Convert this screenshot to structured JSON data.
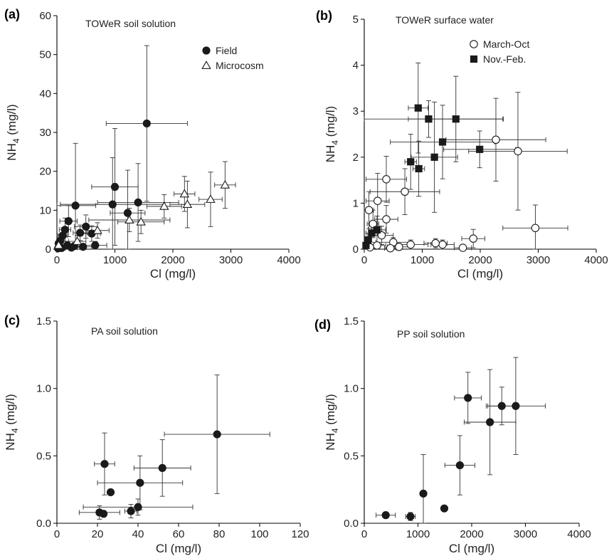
{
  "chart_data": [
    {
      "type": "scatter",
      "panel_label": "(a)",
      "title": "TOWeR soil solution",
      "xlabel": "Cl (mg/l)",
      "ylabel": "NH4 (mg/l)",
      "xlim": [
        0,
        4000
      ],
      "ylim": [
        0,
        60
      ],
      "xticks": [
        "0",
        "1000",
        "2000",
        "3000",
        "4000"
      ],
      "yticks": [
        "0",
        "10",
        "20",
        "30",
        "40",
        "50",
        "60"
      ],
      "legend": "top-right",
      "series": [
        {
          "name": "Field",
          "marker": "filled-circle",
          "points": [
            {
              "x": 1550,
              "y": 32.3,
              "xerr": 700,
              "yerr": 20
            },
            {
              "x": 1000,
              "y": 16.0,
              "xerr": 400,
              "yerr": 15
            },
            {
              "x": 960,
              "y": 11.5,
              "xerr": 900,
              "yerr": 12
            },
            {
              "x": 1400,
              "y": 12.0,
              "xerr": 700,
              "yerr": 10
            },
            {
              "x": 1220,
              "y": 9.3,
              "xerr": 300,
              "yerr": 11
            },
            {
              "x": 320,
              "y": 11.2,
              "xerr": 350,
              "yerr": 16
            },
            {
              "x": 200,
              "y": 7.2,
              "xerr": 150,
              "yerr": 4
            },
            {
              "x": 500,
              "y": 5.8,
              "xerr": 200,
              "yerr": 3
            },
            {
              "x": 140,
              "y": 5.0,
              "xerr": 100,
              "yerr": 3
            },
            {
              "x": 600,
              "y": 4.0,
              "xerr": 150,
              "yerr": 2
            },
            {
              "x": 400,
              "y": 4.2,
              "xerr": 120,
              "yerr": 2
            },
            {
              "x": 100,
              "y": 3.5,
              "xerr": 80,
              "yerr": 2
            },
            {
              "x": 60,
              "y": 2.2,
              "xerr": 50,
              "yerr": 1.5
            },
            {
              "x": 30,
              "y": 1.5,
              "xerr": 30,
              "yerr": 1
            },
            {
              "x": 180,
              "y": 1.0,
              "xerr": 100,
              "yerr": 1
            },
            {
              "x": 660,
              "y": 1.0,
              "xerr": 200,
              "yerr": 1
            },
            {
              "x": 300,
              "y": 0.8,
              "xerr": 150,
              "yerr": 0.8
            },
            {
              "x": 450,
              "y": 0.6,
              "xerr": 150,
              "yerr": 0.6
            },
            {
              "x": 250,
              "y": 0.4,
              "xerr": 100,
              "yerr": 0.4
            },
            {
              "x": 80,
              "y": 0.3,
              "xerr": 60,
              "yerr": 0.3
            },
            {
              "x": 20,
              "y": 0.2,
              "xerr": 20,
              "yerr": 0.2
            }
          ]
        },
        {
          "name": "Microcosm",
          "marker": "open-triangle",
          "points": [
            {
              "x": 2900,
              "y": 16.5,
              "xerr": 180,
              "yerr": 6
            },
            {
              "x": 2200,
              "y": 14.2,
              "xerr": 180,
              "yerr": 4.5
            },
            {
              "x": 2650,
              "y": 12.8,
              "xerr": 200,
              "yerr": 7
            },
            {
              "x": 1850,
              "y": 11.0,
              "xerr": 300,
              "yerr": 3
            },
            {
              "x": 2250,
              "y": 11.5,
              "xerr": 300,
              "yerr": 6
            },
            {
              "x": 1250,
              "y": 7.5,
              "xerr": 700,
              "yerr": 3
            },
            {
              "x": 1450,
              "y": 7.0,
              "xerr": 400,
              "yerr": 3
            },
            {
              "x": 700,
              "y": 4.8,
              "xerr": 200,
              "yerr": 2
            },
            {
              "x": 350,
              "y": 2.0,
              "xerr": 150,
              "yerr": 1.5
            },
            {
              "x": 30,
              "y": 1.0,
              "xerr": 30,
              "yerr": 0.8
            }
          ]
        }
      ]
    },
    {
      "type": "scatter",
      "panel_label": "(b)",
      "title": "TOWeR surface water",
      "xlabel": "Cl (mg/l)",
      "ylabel": "NH4 (mg/l)",
      "xlim": [
        0,
        4000
      ],
      "ylim": [
        0,
        5
      ],
      "xticks": [
        "0",
        "1000",
        "2000",
        "3000",
        "4000"
      ],
      "yticks": [
        "0",
        "1",
        "2",
        "3",
        "4",
        "5"
      ],
      "legend": "top-right",
      "series": [
        {
          "name": "March-Oct",
          "marker": "open-circle",
          "points": [
            {
              "x": 2270,
              "y": 2.38,
              "xerr": 860,
              "yerr": 0.9
            },
            {
              "x": 2650,
              "y": 2.13,
              "xerr": 850,
              "yerr": 1.28
            },
            {
              "x": 2950,
              "y": 0.46,
              "xerr": 560,
              "yerr": 0.5
            },
            {
              "x": 1880,
              "y": 0.23,
              "xerr": 200,
              "yerr": 0.2
            },
            {
              "x": 380,
              "y": 1.52,
              "xerr": 350,
              "yerr": 0.5
            },
            {
              "x": 700,
              "y": 1.25,
              "xerr": 600,
              "yerr": 0.5
            },
            {
              "x": 230,
              "y": 1.05,
              "xerr": 200,
              "yerr": 0.6
            },
            {
              "x": 80,
              "y": 0.85,
              "xerr": 80,
              "yerr": 0.4
            },
            {
              "x": 380,
              "y": 0.65,
              "xerr": 200,
              "yerr": 0.3
            },
            {
              "x": 150,
              "y": 0.55,
              "xerr": 100,
              "yerr": 0.3
            },
            {
              "x": 300,
              "y": 0.3,
              "xerr": 200,
              "yerr": 0.2
            },
            {
              "x": 500,
              "y": 0.15,
              "xerr": 300,
              "yerr": 0.1
            },
            {
              "x": 800,
              "y": 0.1,
              "xerr": 300,
              "yerr": 0.1
            },
            {
              "x": 1350,
              "y": 0.1,
              "xerr": 200,
              "yerr": 0.1
            },
            {
              "x": 1230,
              "y": 0.13,
              "xerr": 200,
              "yerr": 0.1
            },
            {
              "x": 1700,
              "y": 0.03,
              "xerr": 150,
              "yerr": 0.05
            },
            {
              "x": 600,
              "y": 0.05,
              "xerr": 200,
              "yerr": 0.05
            },
            {
              "x": 220,
              "y": 0.08,
              "xerr": 150,
              "yerr": 0.05
            },
            {
              "x": 100,
              "y": 0.04,
              "xerr": 100,
              "yerr": 0.04
            },
            {
              "x": 450,
              "y": 0.02,
              "xerr": 100,
              "yerr": 0.02
            }
          ]
        },
        {
          "name": "Nov.-Feb.",
          "marker": "filled-square",
          "points": [
            {
              "x": 930,
              "y": 3.07,
              "xerr": 170,
              "yerr": 0.98
            },
            {
              "x": 1110,
              "y": 2.83,
              "xerr": 1280,
              "yerr": 0.4
            },
            {
              "x": 1580,
              "y": 2.83,
              "xerr": 820,
              "yerr": 0.93
            },
            {
              "x": 1350,
              "y": 2.33,
              "xerr": 900,
              "yerr": 0.8
            },
            {
              "x": 1990,
              "y": 2.17,
              "xerr": 620,
              "yerr": 0.4
            },
            {
              "x": 1210,
              "y": 2.0,
              "xerr": 400,
              "yerr": 1.2
            },
            {
              "x": 800,
              "y": 1.9,
              "xerr": 100,
              "yerr": 0.6
            },
            {
              "x": 940,
              "y": 1.75,
              "xerr": 100,
              "yerr": 0.6
            },
            {
              "x": 220,
              "y": 0.42,
              "xerr": 150,
              "yerr": 0.3
            },
            {
              "x": 130,
              "y": 0.35,
              "xerr": 100,
              "yerr": 0.2
            },
            {
              "x": 60,
              "y": 0.2,
              "xerr": 60,
              "yerr": 0.15
            },
            {
              "x": 30,
              "y": 0.08,
              "xerr": 30,
              "yerr": 0.05
            }
          ]
        }
      ]
    },
    {
      "type": "scatter",
      "panel_label": "(c)",
      "title": "PA soil solution",
      "xlabel": "Cl (mg/l)",
      "ylabel": "NH4 (mg/l)",
      "xlim": [
        0,
        120
      ],
      "ylim": [
        0,
        1.5
      ],
      "xticks": [
        "0",
        "20",
        "40",
        "60",
        "80",
        "100",
        "120"
      ],
      "yticks": [
        "0.0",
        "0.5",
        "1.0",
        "1.5"
      ],
      "series": [
        {
          "name": "",
          "marker": "filled-circle",
          "points": [
            {
              "x": 79,
              "y": 0.66,
              "xerr": 26,
              "yerr": 0.44
            },
            {
              "x": 23.5,
              "y": 0.44,
              "xerr": 5,
              "yerr": 0.23
            },
            {
              "x": 52,
              "y": 0.41,
              "xerr": 14,
              "yerr": 0.21
            },
            {
              "x": 41,
              "y": 0.3,
              "xerr": 21,
              "yerr": 0.2
            },
            {
              "x": 26.5,
              "y": 0.23,
              "xerr": 0,
              "yerr": 0
            },
            {
              "x": 40,
              "y": 0.12,
              "xerr": 27,
              "yerr": 0.06
            },
            {
              "x": 36.5,
              "y": 0.09,
              "xerr": 3,
              "yerr": 0.05
            },
            {
              "x": 21,
              "y": 0.08,
              "xerr": 10,
              "yerr": 0.05
            },
            {
              "x": 23,
              "y": 0.07,
              "xerr": 0,
              "yerr": 0
            }
          ]
        }
      ]
    },
    {
      "type": "scatter",
      "panel_label": "(d)",
      "title": "PP soil solution",
      "xlabel": "Cl (mg/l)",
      "ylabel": "NH4 (mg/l)",
      "xlim": [
        0,
        4000
      ],
      "ylim": [
        0,
        1.5
      ],
      "xticks": [
        "0",
        "1000",
        "2000",
        "3000",
        "4000"
      ],
      "yticks": [
        "0.0",
        "0.5",
        "1.0",
        "1.5"
      ],
      "series": [
        {
          "name": "",
          "marker": "filled-circle",
          "points": [
            {
              "x": 1930,
              "y": 0.93,
              "xerr": 250,
              "yerr": 0.19
            },
            {
              "x": 2560,
              "y": 0.87,
              "xerr": 260,
              "yerr": 0.14
            },
            {
              "x": 2820,
              "y": 0.87,
              "xerr": 550,
              "yerr": 0.36
            },
            {
              "x": 2340,
              "y": 0.75,
              "xerr": 480,
              "yerr": 0.39
            },
            {
              "x": 1780,
              "y": 0.43,
              "xerr": 280,
              "yerr": 0.22
            },
            {
              "x": 1100,
              "y": 0.22,
              "xerr": 0,
              "yerr": 0.29
            },
            {
              "x": 1490,
              "y": 0.11,
              "xerr": 0,
              "yerr": 0
            },
            {
              "x": 400,
              "y": 0.06,
              "xerr": 180,
              "yerr": 0.02
            },
            {
              "x": 860,
              "y": 0.05,
              "xerr": 90,
              "yerr": 0.03
            }
          ]
        }
      ]
    }
  ]
}
